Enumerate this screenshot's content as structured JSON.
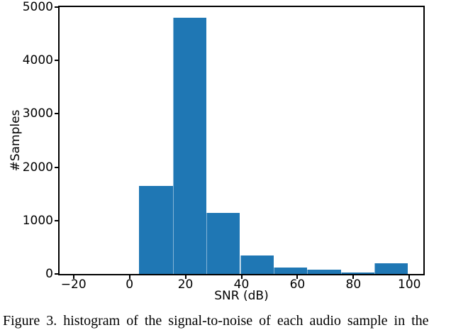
{
  "figure": {
    "caption": "Figure 3. histogram of the signal-to-noise of each audio sample in the"
  },
  "chart_data": {
    "type": "bar",
    "subtype": "histogram",
    "title": "",
    "xlabel": "SNR (dB)",
    "ylabel": "#Samples",
    "bin_edges": [
      4,
      16,
      28,
      40,
      52,
      64,
      76,
      88,
      100
    ],
    "counts": [
      1650,
      4800,
      1150,
      350,
      120,
      75,
      30,
      200
    ],
    "xlim": [
      -25,
      105
    ],
    "ylim": [
      0,
      5000
    ],
    "xticks": [
      -20,
      0,
      20,
      40,
      60,
      80,
      100
    ],
    "xtick_labels": [
      "−20",
      "0",
      "20",
      "40",
      "60",
      "80",
      "100"
    ],
    "yticks": [
      0,
      1000,
      2000,
      3000,
      4000,
      5000
    ],
    "ytick_labels": [
      "0",
      "1000",
      "2000",
      "3000",
      "4000",
      "5000"
    ],
    "bar_color": "#1f77b4",
    "grid": false,
    "legend_position": "none"
  }
}
